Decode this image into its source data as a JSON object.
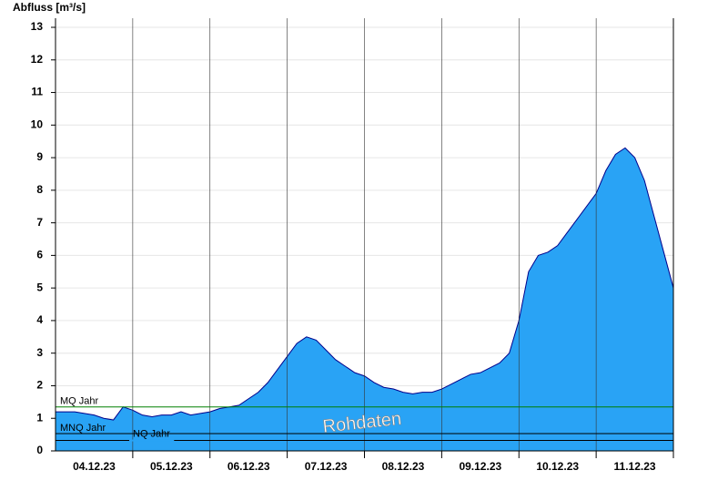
{
  "chart_data": {
    "type": "area",
    "y_label": "Abfluss [m³/s]",
    "x": [
      null,
      null,
      null,
      null,
      "04.12.23",
      null,
      null,
      null,
      null,
      null,
      null,
      null,
      "05.12.23",
      null,
      null,
      null,
      null,
      null,
      null,
      null,
      "06.12.23",
      null,
      null,
      null,
      null,
      null,
      null,
      null,
      "07.12.23",
      null,
      null,
      null,
      null,
      null,
      null,
      null,
      "08.12.23",
      null,
      null,
      null,
      null,
      null,
      null,
      null,
      "09.12.23",
      null,
      null,
      null,
      null,
      null,
      null,
      null,
      "10.12.23",
      null,
      null,
      null,
      null,
      null,
      null,
      null,
      "11.12.23",
      null,
      null,
      null,
      null
    ],
    "series": [
      {
        "color": "#29a3f5",
        "line_color": "#00008b",
        "values": [
          1.2,
          1.2,
          1.2,
          1.15,
          1.1,
          1.0,
          0.95,
          1.35,
          1.25,
          1.1,
          1.05,
          1.1,
          1.1,
          1.2,
          1.1,
          1.15,
          1.2,
          1.3,
          1.35,
          1.4,
          1.6,
          1.8,
          2.1,
          2.5,
          2.9,
          3.3,
          3.5,
          3.4,
          3.1,
          2.8,
          2.6,
          2.4,
          2.3,
          2.1,
          1.95,
          1.9,
          1.8,
          1.75,
          1.8,
          1.8,
          1.9,
          2.05,
          2.2,
          2.35,
          2.4,
          2.55,
          2.7,
          3.0,
          4.0,
          5.5,
          6.0,
          6.1,
          6.3,
          6.7,
          7.1,
          7.5,
          7.9,
          8.6,
          9.1,
          9.3,
          9.0,
          8.3,
          7.2,
          6.1,
          5.0
        ]
      }
    ],
    "ylim": [
      0,
      13
    ],
    "yticks": [
      0,
      1,
      2,
      3,
      4,
      5,
      6,
      7,
      8,
      9,
      10,
      11,
      12,
      13
    ],
    "grid": true,
    "reference_lines": [
      {
        "label": "MQ Jahr",
        "value": 1.35,
        "color": "#008000"
      },
      {
        "label": "MNQ Jahr",
        "value": 0.53,
        "color": "#000000"
      },
      {
        "label": "NQ Jahr",
        "value": 0.32,
        "color": "#000000"
      }
    ],
    "annotation": "Rohdaten"
  }
}
